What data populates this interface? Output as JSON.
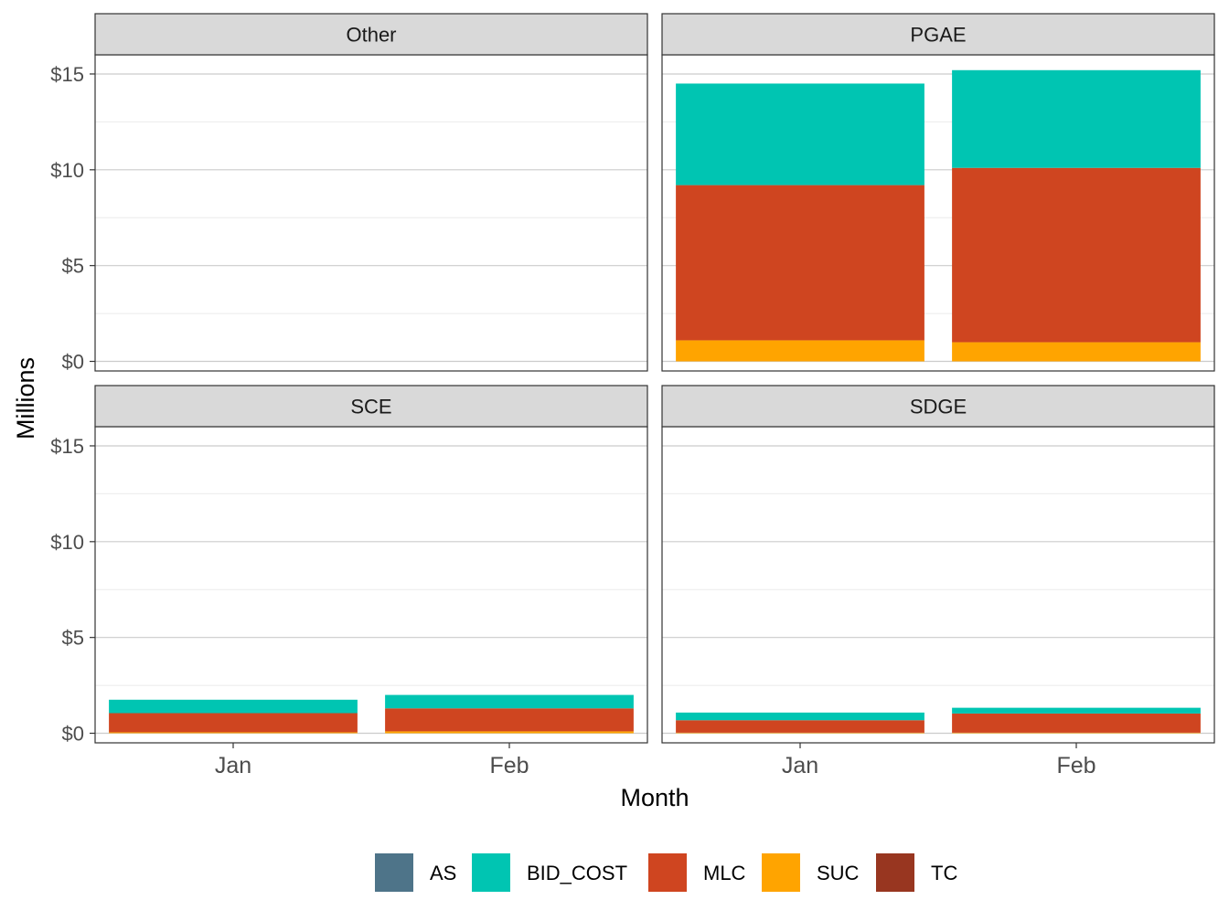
{
  "chart_data": {
    "type": "bar",
    "stacked": true,
    "faceted": true,
    "xlabel": "Month",
    "ylabel": "Millions",
    "ylim": [
      -0.5,
      16.0
    ],
    "y_ticks": [
      0,
      5,
      10,
      15
    ],
    "y_tick_labels": [
      "$0",
      "$5",
      "$10",
      "$15"
    ],
    "categories": [
      "Jan",
      "Feb"
    ],
    "legend_position": "bottom",
    "legend": [
      {
        "key": "AS",
        "label": "AS",
        "color": "#4e7489"
      },
      {
        "key": "BID_COST",
        "label": "BID_COST",
        "color": "#00c5b2"
      },
      {
        "key": "MLC",
        "label": "MLC",
        "color": "#cf4520"
      },
      {
        "key": "SUC",
        "label": "SUC",
        "color": "#ffa400"
      },
      {
        "key": "TC",
        "label": "TC",
        "color": "#983620"
      }
    ],
    "stack_order": [
      "SUC",
      "MLC",
      "BID_COST",
      "AS",
      "TC"
    ],
    "panels": [
      {
        "title": "Other",
        "show_x_axis": false,
        "series": {
          "AS": [
            0,
            0
          ],
          "BID_COST": [
            0,
            0
          ],
          "MLC": [
            0,
            0
          ],
          "SUC": [
            0,
            0
          ],
          "TC": [
            0,
            0
          ]
        }
      },
      {
        "title": "PGAE",
        "show_x_axis": false,
        "series": {
          "AS": [
            0,
            0
          ],
          "BID_COST": [
            5.3,
            5.1
          ],
          "MLC": [
            8.1,
            9.1
          ],
          "SUC": [
            1.1,
            1.0
          ],
          "TC": [
            0,
            0
          ]
        }
      },
      {
        "title": "SCE",
        "show_x_axis": true,
        "series": {
          "AS": [
            0,
            0
          ],
          "BID_COST": [
            0.7,
            0.7
          ],
          "MLC": [
            1.0,
            1.2
          ],
          "SUC": [
            0.05,
            0.1
          ],
          "TC": [
            0,
            0
          ]
        }
      },
      {
        "title": "SDGE",
        "show_x_axis": true,
        "series": {
          "AS": [
            0,
            0
          ],
          "BID_COST": [
            0.4,
            0.3
          ],
          "MLC": [
            0.65,
            1.0
          ],
          "SUC": [
            0.03,
            0.03
          ],
          "TC": [
            0,
            0
          ]
        }
      }
    ]
  }
}
